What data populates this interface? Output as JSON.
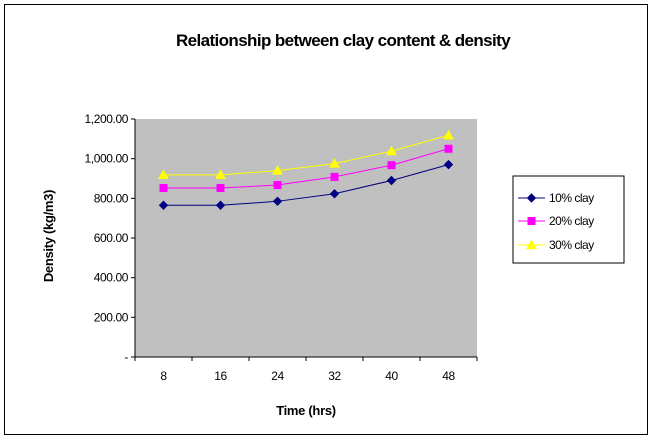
{
  "chart_data": {
    "type": "line",
    "title": "Relationship between clay content & density",
    "xlabel": "Time (hrs)",
    "ylabel": "Density (kg/m3)",
    "categories": [
      "8",
      "16",
      "24",
      "32",
      "40",
      "48"
    ],
    "ylim": [
      0,
      1200
    ],
    "yticks": [
      {
        "value": 0,
        "label": "-"
      },
      {
        "value": 200,
        "label": "200.00"
      },
      {
        "value": 400,
        "label": "400.00"
      },
      {
        "value": 600,
        "label": "600.00"
      },
      {
        "value": 800,
        "label": "800.00"
      },
      {
        "value": 1000,
        "label": "1,000.00"
      },
      {
        "value": 1200,
        "label": "1,200.00"
      }
    ],
    "grid": false,
    "plot_background": "#c0c0c0",
    "legend_position": "right",
    "series": [
      {
        "name": "10% clay",
        "values": [
          765,
          765,
          785,
          823,
          890,
          970
        ],
        "color": "#000080",
        "marker": "diamond"
      },
      {
        "name": "20% clay",
        "values": [
          852,
          852,
          867,
          908,
          967,
          1050
        ],
        "color": "#ff00ff",
        "marker": "square"
      },
      {
        "name": "30% clay",
        "values": [
          918,
          918,
          940,
          975,
          1038,
          1118
        ],
        "color": "#ffff00",
        "marker": "triangle"
      }
    ]
  }
}
